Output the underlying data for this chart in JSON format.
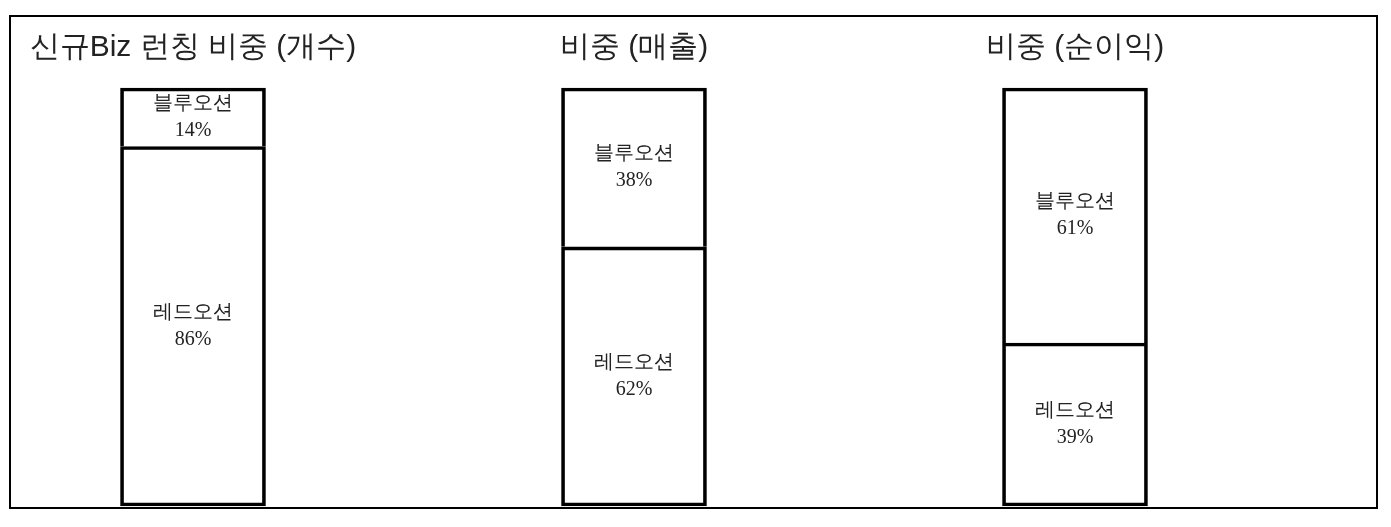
{
  "chart_data": {
    "type": "bar",
    "categories": [
      "신규Biz 런칭 비중 (개수)",
      "비중 (매출)",
      "비중 (순이익)"
    ],
    "stacked": true,
    "ylim": [
      0,
      100
    ],
    "tick_labels": "x",
    "series": [
      {
        "name": "레드오션",
        "color": "#000000",
        "values": [
          86,
          62,
          39
        ],
        "value_labels": [
          "86%",
          "62%",
          "39%"
        ]
      },
      {
        "name": "블루오션",
        "color": "#000000",
        "values": [
          14,
          38,
          61
        ],
        "value_labels": [
          "14%",
          "38%",
          "61%"
        ]
      }
    ]
  }
}
